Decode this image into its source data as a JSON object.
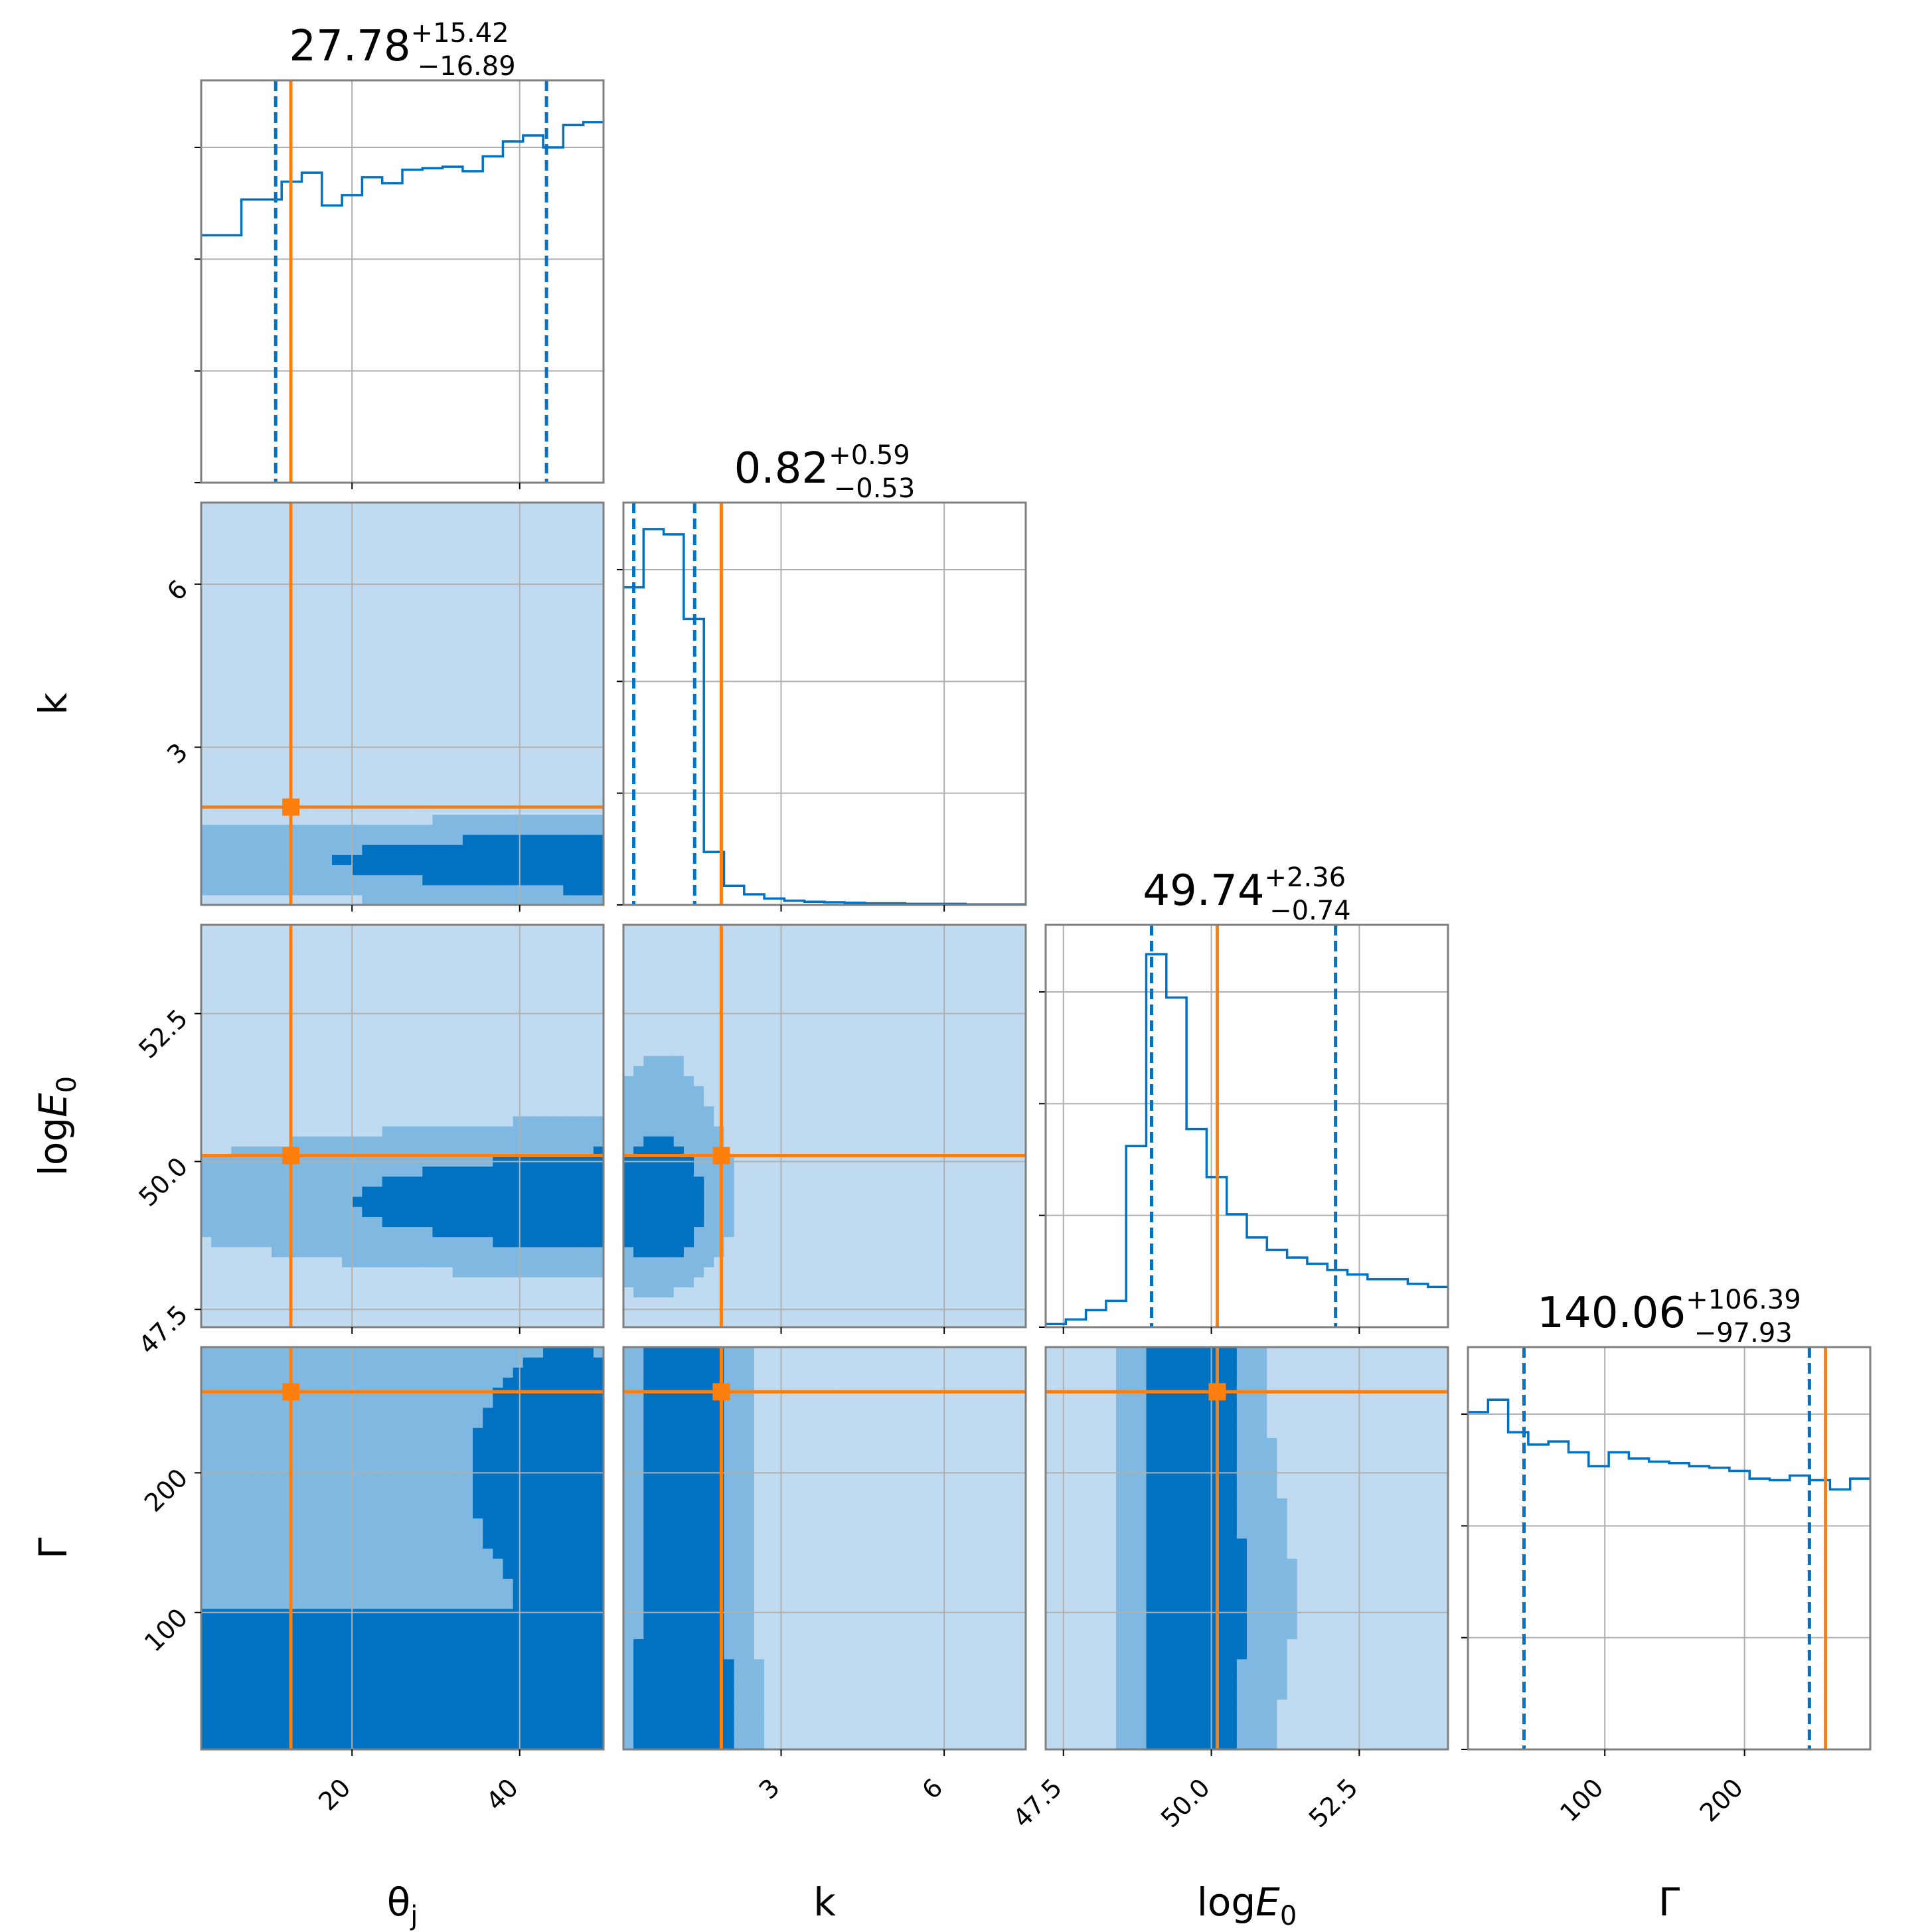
{
  "chart_data": {
    "type": "corner",
    "parameters": [
      {
        "key": "theta_j",
        "axis_label": "θ",
        "axis_label_sub": "j",
        "range": [
          2,
          50
        ],
        "ticks": [
          20,
          40
        ],
        "tick_labels": [
          "20",
          "40"
        ]
      },
      {
        "key": "k",
        "axis_label": "k",
        "range": [
          0.1,
          7.5
        ],
        "ticks": [
          3,
          6
        ],
        "tick_labels": [
          "3",
          "6"
        ]
      },
      {
        "key": "logE0",
        "axis_label": "log",
        "axis_label_e": "E",
        "axis_label_sub": "0",
        "range": [
          47.2,
          54.0
        ],
        "ticks": [
          47.5,
          50.0,
          52.5
        ],
        "tick_labels": [
          "47.5",
          "50.0",
          "52.5"
        ]
      },
      {
        "key": "Gamma",
        "axis_label": "Γ",
        "range": [
          2,
          290
        ],
        "ticks": [
          100,
          200
        ],
        "tick_labels": [
          "100",
          "200"
        ]
      }
    ],
    "titles": [
      {
        "value": "27.78",
        "plus": "+15.42",
        "minus": "−16.89"
      },
      {
        "value": "0.82",
        "plus": "+0.59",
        "minus": "−0.53"
      },
      {
        "value": "49.74",
        "plus": "+2.36",
        "minus": "−0.74"
      },
      {
        "value": "140.06",
        "plus": "+106.39",
        "minus": "−97.93"
      }
    ],
    "quantiles": [
      [
        10.89,
        43.2
      ],
      [
        0.29,
        1.41
      ],
      [
        48.99,
        52.1
      ],
      [
        42.13,
        246.45
      ]
    ],
    "truths": [
      12.7,
      1.9,
      50.1,
      258
    ],
    "hist_counts": [
      [
        166,
        166,
        190,
        190,
        202,
        208,
        186,
        193,
        205,
        201,
        210,
        211,
        212,
        209,
        219,
        229,
        233,
        225,
        240,
        242
      ],
      [
        600,
        710,
        700,
        540,
        100,
        36,
        20,
        12,
        8,
        6,
        5,
        4,
        3,
        3,
        2,
        2,
        2,
        1,
        1,
        1
      ],
      [
        2,
        5,
        11,
        17,
        117,
        241,
        213,
        128,
        97,
        73,
        58,
        50,
        45,
        41,
        37,
        34,
        31,
        31,
        28,
        26
      ],
      [
        218,
        226,
        205,
        197,
        199,
        192,
        183,
        192,
        188,
        186,
        185,
        183,
        182,
        180,
        175,
        174,
        177,
        174,
        168,
        175
      ]
    ],
    "hist_ylim": [
      [
        0,
        270
      ],
      [
        0,
        760
      ],
      [
        0,
        260
      ],
      [
        0,
        260
      ]
    ],
    "colors": {
      "main": "#0072C1",
      "truth": "#ff7f0e",
      "level3": "#0072C1",
      "level2": "#7fb8e0",
      "level1": "#c0dbf0",
      "grid": "#b0b0b0",
      "frame": "#7f7f7f"
    }
  }
}
